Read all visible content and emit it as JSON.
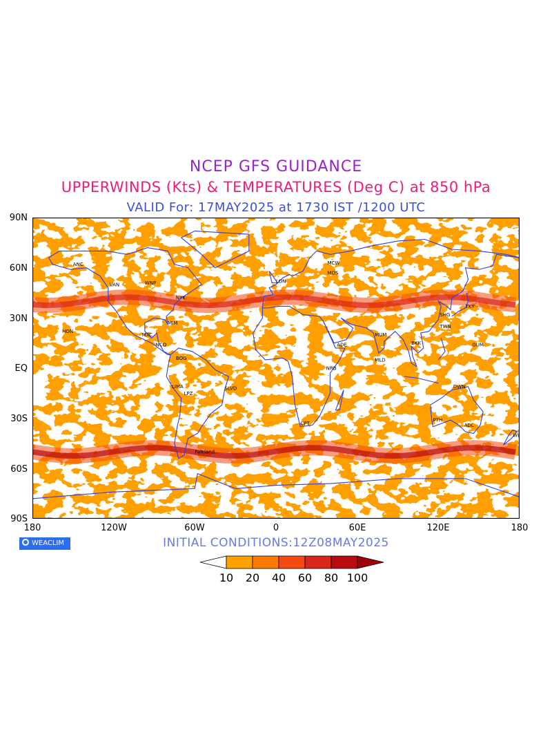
{
  "header": {
    "line1": "NCEP GFS GUIDANCE",
    "line2": "UPPERWINDS (Kts) & TEMPERATURES (Deg C) at 850 hPa",
    "line3": "VALID For: 17MAY2025 at 1730 IST /1200 UTC"
  },
  "axes": {
    "lat_labels": [
      "90N",
      "60N",
      "30N",
      "EQ",
      "30S",
      "60S",
      "90S"
    ],
    "lon_labels": [
      "180",
      "120W",
      "60W",
      "0",
      "60E",
      "120E",
      "180"
    ]
  },
  "footer": {
    "initial_conditions": "INITIAL CONDITIONS:12Z08MAY2025",
    "logo_text": "WEACLIM"
  },
  "legend": {
    "labels": [
      "10",
      "20",
      "40",
      "60",
      "80",
      "100"
    ],
    "colors": [
      "#ffffff",
      "#ffa200",
      "#ff7a00",
      "#f24a10",
      "#d8261a",
      "#b80c10",
      "#a00008"
    ]
  },
  "map": {
    "coastline_color": "#2f3fe0",
    "station_codes": [
      "ANC",
      "VAN",
      "WNP",
      "NYK",
      "MIM",
      "MXC",
      "NCO",
      "BOG",
      "LPZ",
      "SLVD",
      "LIMA",
      "HON",
      "LON",
      "MOS",
      "MCW",
      "ADE",
      "NRB",
      "CPT",
      "MUM",
      "MLD",
      "BKK",
      "TKY",
      "GUM",
      "SHG",
      "TWN",
      "DWN",
      "PTH",
      "ADL",
      "WLT",
      "Falkland"
    ]
  },
  "chart_data": {
    "type": "heatmap",
    "title": "NCEP GFS GUIDANCE",
    "subtitle": "UPPERWINDS (Kts) & TEMPERATURES (Deg C) at 850 hPa",
    "x_ticks": [
      "180",
      "120W",
      "60W",
      "0",
      "60E",
      "120E",
      "180"
    ],
    "y_ticks": [
      "90N",
      "60N",
      "30N",
      "EQ",
      "30S",
      "60S",
      "90S"
    ],
    "xlim": [
      -180,
      180
    ],
    "ylim": [
      -90,
      90
    ],
    "colorbar_levels": [
      10,
      20,
      40,
      60,
      80,
      100
    ],
    "colorbar_unit": "Kts",
    "jet_bands": [
      {
        "lat_center": -50,
        "lon_range": [
          -180,
          180
        ],
        "max_level": 80
      },
      {
        "lat_center": 40,
        "lon_range": [
          -180,
          180
        ],
        "max_level": 60
      }
    ]
  }
}
